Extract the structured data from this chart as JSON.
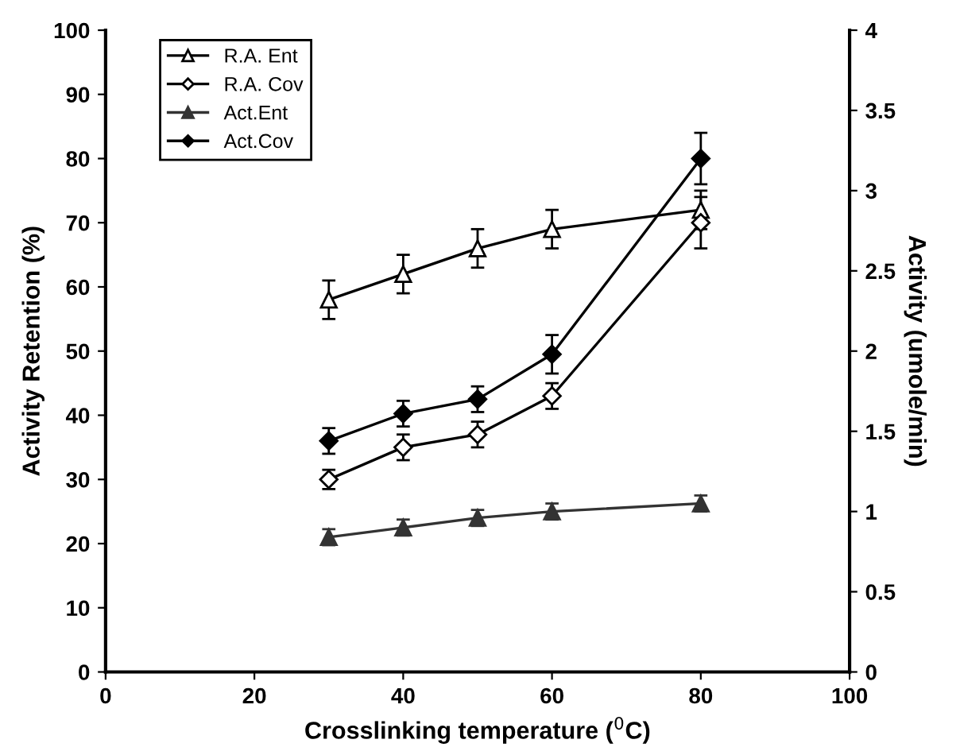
{
  "chart_data": {
    "type": "line",
    "xlabel": "Crosslinking temperature ($^{0}$C)",
    "ylabel": "Activity Retention (%)",
    "y2label": "Activity (umole/min)",
    "x": [
      30,
      40,
      50,
      60,
      80
    ],
    "series": [
      {
        "name": "R.A. Ent",
        "color": "#000000",
        "marker": "triangle",
        "values": [
          58,
          62,
          66,
          69,
          72
        ],
        "errors": [
          3,
          3,
          3,
          3,
          3
        ]
      },
      {
        "name": "R.A. Cov",
        "color": "#000000",
        "marker": "diamond",
        "values": [
          30,
          35,
          37,
          43,
          70
        ],
        "errors": [
          1.5,
          2,
          2,
          2,
          4
        ]
      },
      {
        "name": "Act.Ent",
        "color": "#333333",
        "marker": "triangle",
        "axis": "y2",
        "values": [
          0.84,
          0.9,
          0.96,
          1.0,
          1.05
        ],
        "errors": [
          0.05,
          0.05,
          0.05,
          0.05,
          0.05
        ]
      },
      {
        "name": "Act.Cov",
        "color": "#000000",
        "marker": "diamond",
        "axis": "y2",
        "values": [
          1.44,
          1.61,
          1.7,
          1.98,
          3.2
        ],
        "errors": [
          0.08,
          0.08,
          0.08,
          0.12,
          0.16
        ]
      }
    ],
    "xlim": [
      0,
      100
    ],
    "xticks": [
      0,
      20,
      40,
      60,
      80,
      100
    ],
    "ylim": [
      0,
      100
    ],
    "yticks": [
      0,
      10,
      20,
      30,
      40,
      50,
      60,
      70,
      80,
      90,
      100
    ],
    "y2lim": [
      0,
      4
    ],
    "y2ticks": [
      0,
      0.5,
      1,
      1.5,
      2,
      2.5,
      3,
      3.5,
      4
    ],
    "legend": "top left",
    "grid": false,
    "line_style": "solid"
  }
}
